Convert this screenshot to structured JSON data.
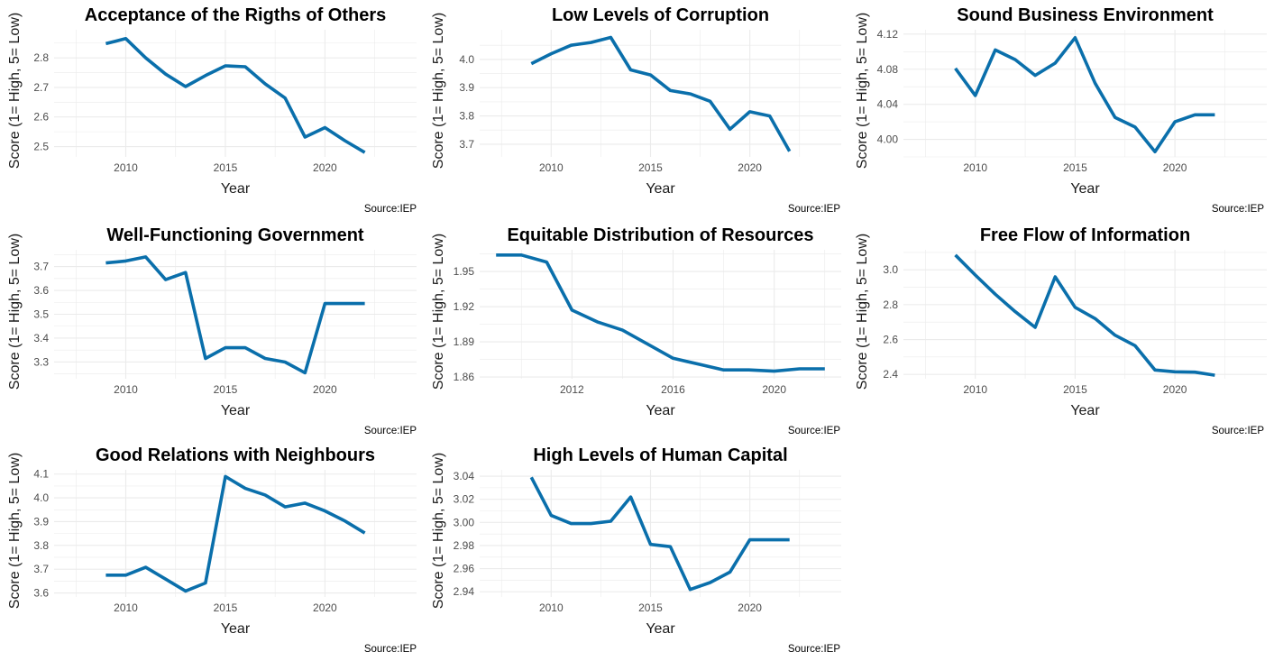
{
  "line_color": "#0a6fab",
  "grid_color": "#ebebeb",
  "chart_data": [
    {
      "type": "line",
      "title": "Acceptance of the Rigths of Others",
      "xlabel": "Year",
      "ylabel": "Score (1= High, 5= Low)",
      "source": "Source:IEP",
      "xlim": [
        2006.4,
        2024.6
      ],
      "ylim": [
        2.465,
        2.895
      ],
      "xticks": [
        2010,
        2015,
        2020
      ],
      "yticks": [
        2.5,
        2.6,
        2.7,
        2.8
      ],
      "ytick_labels": [
        "2.5",
        "2.6",
        "2.7",
        "2.8"
      ],
      "x": [
        2009,
        2010,
        2011,
        2012,
        2013,
        2014,
        2015,
        2016,
        2017,
        2018,
        2019,
        2020,
        2021,
        2022
      ],
      "y": [
        2.848,
        2.865,
        2.8,
        2.745,
        2.703,
        2.74,
        2.773,
        2.77,
        2.712,
        2.664,
        2.532,
        2.564,
        2.52,
        2.48
      ]
    },
    {
      "type": "line",
      "title": "Low Levels of Corruption",
      "xlabel": "Year",
      "ylabel": "Score (1= High, 5= Low)",
      "source": "Source:IEP",
      "xlim": [
        2006.4,
        2024.6
      ],
      "ylim": [
        3.655,
        4.105
      ],
      "xticks": [
        2010,
        2015,
        2020
      ],
      "yticks": [
        3.7,
        3.8,
        3.9,
        4.0
      ],
      "ytick_labels": [
        "3.7",
        "3.8",
        "3.9",
        "4.0"
      ],
      "x": [
        2009,
        2010,
        2011,
        2012,
        2013,
        2014,
        2015,
        2016,
        2017,
        2018,
        2019,
        2020,
        2021,
        2022
      ],
      "y": [
        3.985,
        4.02,
        4.05,
        4.06,
        4.078,
        3.963,
        3.945,
        3.89,
        3.878,
        3.852,
        3.753,
        3.815,
        3.8,
        3.675
      ]
    },
    {
      "type": "line",
      "title": "Sound Business Environment",
      "xlabel": "Year",
      "ylabel": "Score (1= High, 5= Low)",
      "source": "Source:IEP",
      "xlim": [
        2006.4,
        2024.6
      ],
      "ylim": [
        3.98,
        4.125
      ],
      "xticks": [
        2010,
        2015,
        2020
      ],
      "yticks": [
        4.0,
        4.04,
        4.08,
        4.12
      ],
      "ytick_labels": [
        "4.00",
        "4.04",
        "4.08",
        "4.12"
      ],
      "x": [
        2009,
        2010,
        2011,
        2012,
        2013,
        2014,
        2015,
        2016,
        2017,
        2018,
        2019,
        2020,
        2021,
        2022
      ],
      "y": [
        4.081,
        4.05,
        4.102,
        4.091,
        4.073,
        4.087,
        4.116,
        4.064,
        4.025,
        4.014,
        3.986,
        4.02,
        4.028,
        4.028
      ]
    },
    {
      "type": "line",
      "title": "Well-Functioning Government",
      "xlabel": "Year",
      "ylabel": "Score (1= High, 5= Low)",
      "source": "Source:IEP",
      "xlim": [
        2006.4,
        2024.6
      ],
      "ylim": [
        3.23,
        3.77
      ],
      "xticks": [
        2010,
        2015,
        2020
      ],
      "yticks": [
        3.3,
        3.4,
        3.5,
        3.6,
        3.7
      ],
      "ytick_labels": [
        "3.3",
        "3.4",
        "3.5",
        "3.6",
        "3.7"
      ],
      "x": [
        2009,
        2010,
        2011,
        2012,
        2013,
        2014,
        2015,
        2016,
        2017,
        2018,
        2019,
        2020,
        2021,
        2022
      ],
      "y": [
        3.715,
        3.723,
        3.74,
        3.645,
        3.675,
        3.315,
        3.36,
        3.36,
        3.315,
        3.3,
        3.255,
        3.545,
        3.545,
        3.545
      ]
    },
    {
      "type": "line",
      "title": "Equitable Distribution of Resources",
      "xlabel": "Year",
      "ylabel": "Score (1= High, 5= Low)",
      "source": "Source:IEP",
      "xlim": [
        2008.35,
        2022.65
      ],
      "ylim": [
        1.8585,
        1.9685
      ],
      "xticks": [
        2012,
        2016,
        2020
      ],
      "yticks": [
        1.86,
        1.89,
        1.92,
        1.95
      ],
      "ytick_labels": [
        "1.86",
        "1.89",
        "1.92",
        "1.95"
      ],
      "x": [
        2009,
        2010,
        2011,
        2012,
        2013,
        2014,
        2015,
        2016,
        2017,
        2018,
        2019,
        2020,
        2021,
        2022
      ],
      "y": [
        1.964,
        1.964,
        1.958,
        1.917,
        1.907,
        1.9,
        1.888,
        1.876,
        1.871,
        1.866,
        1.866,
        1.865,
        1.867,
        1.867
      ]
    },
    {
      "type": "line",
      "title": "Free Flow of Information",
      "xlabel": "Year",
      "ylabel": "Score (1= High, 5= Low)",
      "source": "Source:IEP",
      "xlim": [
        2006.4,
        2024.6
      ],
      "ylim": [
        2.375,
        3.115
      ],
      "xticks": [
        2010,
        2015,
        2020
      ],
      "yticks": [
        2.4,
        2.6,
        2.8,
        3.0
      ],
      "ytick_labels": [
        "2.4",
        "2.6",
        "2.8",
        "3.0"
      ],
      "x": [
        2009,
        2010,
        2011,
        2012,
        2013,
        2014,
        2015,
        2016,
        2017,
        2018,
        2019,
        2020,
        2021,
        2022
      ],
      "y": [
        3.085,
        2.97,
        2.86,
        2.76,
        2.67,
        2.96,
        2.785,
        2.72,
        2.625,
        2.565,
        2.425,
        2.415,
        2.413,
        2.395
      ]
    },
    {
      "type": "line",
      "title": "Good Relations with Neighbours",
      "xlabel": "Year",
      "ylabel": "Score (1= High, 5= Low)",
      "source": "Source:IEP",
      "xlim": [
        2006.4,
        2024.6
      ],
      "ylim": [
        3.583,
        4.118
      ],
      "xticks": [
        2010,
        2015,
        2020
      ],
      "yticks": [
        3.6,
        3.7,
        3.8,
        3.9,
        4.0,
        4.1
      ],
      "ytick_labels": [
        "3.6",
        "3.7",
        "3.8",
        "3.9",
        "4.0",
        "4.1"
      ],
      "x": [
        2009,
        2010,
        2011,
        2012,
        2013,
        2014,
        2015,
        2016,
        2017,
        2018,
        2019,
        2020,
        2021,
        2022
      ],
      "y": [
        3.675,
        3.675,
        3.708,
        3.658,
        3.608,
        3.642,
        4.09,
        4.04,
        4.012,
        3.962,
        3.978,
        3.945,
        3.903,
        3.852
      ]
    },
    {
      "type": "line",
      "title": "High Levels of Human Capital",
      "xlabel": "Year",
      "ylabel": "Score (1= High, 5= Low)",
      "source": "Source:IEP",
      "xlim": [
        2006.4,
        2024.6
      ],
      "ylim": [
        2.9355,
        3.0455
      ],
      "xticks": [
        2010,
        2015,
        2020
      ],
      "yticks": [
        2.94,
        2.96,
        2.98,
        3.0,
        3.02,
        3.04
      ],
      "ytick_labels": [
        "2.94",
        "2.96",
        "2.98",
        "3.00",
        "3.02",
        "3.04"
      ],
      "x": [
        2009,
        2010,
        2011,
        2012,
        2013,
        2014,
        2015,
        2016,
        2017,
        2018,
        2019,
        2020,
        2021,
        2022
      ],
      "y": [
        3.039,
        3.006,
        2.999,
        2.999,
        3.001,
        3.022,
        2.981,
        2.979,
        2.942,
        2.948,
        2.957,
        2.985,
        2.985,
        2.985
      ]
    }
  ]
}
